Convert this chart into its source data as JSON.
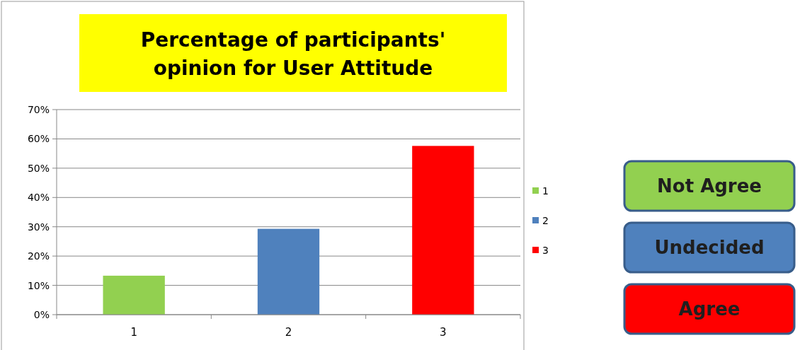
{
  "chart_data": {
    "type": "bar",
    "title": "Percentage of participants' opinion for User Attitude",
    "categories": [
      "1",
      "2",
      "3"
    ],
    "series": [
      {
        "name": "1",
        "color": "#92d050",
        "values": [
          13.3,
          null,
          null
        ]
      },
      {
        "name": "2",
        "color": "#4f81bd",
        "values": [
          null,
          29.3,
          null
        ]
      },
      {
        "name": "3",
        "color": "#ff0000",
        "values": [
          null,
          null,
          57.6
        ]
      }
    ],
    "ylim": [
      0,
      70
    ],
    "yticks": [
      {
        "value": 0,
        "label": "0%"
      },
      {
        "value": 10,
        "label": "10%"
      },
      {
        "value": 20,
        "label": "20%"
      },
      {
        "value": 30,
        "label": "30%"
      },
      {
        "value": 40,
        "label": "40%"
      },
      {
        "value": 50,
        "label": "50%"
      },
      {
        "value": 60,
        "label": "60%"
      },
      {
        "value": 70,
        "label": "70%"
      }
    ],
    "grid": "y",
    "legend": "right",
    "annotations": [
      "Not Agree",
      "Undecided",
      "Agree"
    ]
  }
}
